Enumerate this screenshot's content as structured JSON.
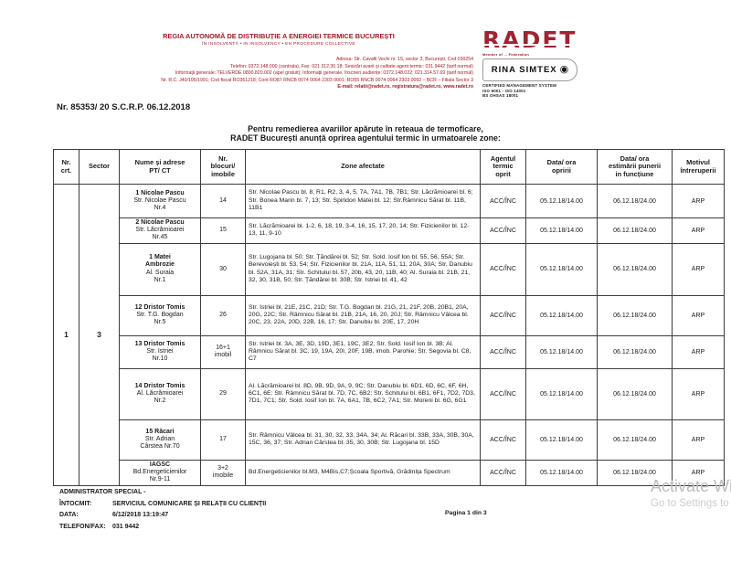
{
  "colors": {
    "brand_red": "#a01c26",
    "logo_red": "#9d2532",
    "watermark_gray": "#bdbdbd"
  },
  "header": {
    "org_name": "REGIA AUTONOMĂ DE DISTRIBUȚIE A ENERGIEI TERMICE BUCUREȘTI",
    "insolvency_line": "ÎN INSOLVENȚĂ • IN INSOLVENCY • EN PROCEDURE COLLECTIVE",
    "address_lines": [
      "Adresa: Str. Cavafii Vechi nr. 15, sector 3, București, Cod 030254",
      "Telefon: 0372.148.000 (centrala), Fax: 021 312.30.18; Sesizări avarii și calitate agent termic: 031.9442 (tarif normal)",
      "Informații generale: TELVERDE 0800.820.002 (apel gratuit); Informații generale, înscrieri audiențe: 0372.148.022; 021.314.57.69 (tarif normal)",
      "Nr. R.C. J40/195/1991; Cod fiscal RO361218; Cont RO87 RNCB 0074 0064 2303 0001; RO55 RNCB 0074 0064 2303 0092 – BCR – Filiala Sector 3",
      "E-mail: relatii@radet.ro, registratura@radet.ro, www.radet.ro"
    ],
    "logo_text": "RADET",
    "member_strip": "Member of ... Federation",
    "cert_name": "RINA SIMTEX",
    "cert_emblem": "◉",
    "cert_lines": "CERTIFIED MANAGEMENT SYSTEM\nISO 9001 - ISO 14001\nBS OHSAS 18001"
  },
  "doc_number": "Nr. 85353/ 20  S.C.R.P.  06.12.2018",
  "announcement": "Pentru remedierea avariilor apărute în reteaua de termoficare,\nRADET București anunță oprirea agentului termic în urmatoarele zone:",
  "table": {
    "headers": [
      "Nr.\ncrt.",
      "Sector",
      "Nume și adrese\nPT/ CT",
      "Nr.\nblocuri/\nimobile",
      "Zone afectate",
      "Agentul\ntermic\noprit",
      "Data/ ora\nopririi",
      "Data/ ora\nestimării punerii\nin funcțiune",
      "Motivul\nîntreruperii"
    ],
    "nr_crt": "1",
    "sector": "3",
    "rows": [
      {
        "title": "1 Nicolae Pascu",
        "addr": "Str. Nicolae Pascu\nNr.4",
        "blocks": "14",
        "zones": "Str. Nicolae Pascu bl. 8, R1, R2, 3, 4, 5, 7A, 7A1, 7B, 7B1; Str. Lăcrămioarei bl. 6; Str. Bonea Marin bl. 7, 13; Str. Spiridon Matei bl. 12; Str.Râmnicu Sărat bl. 11B, 11B1",
        "agent": "ACC/ÎNC",
        "stop": "05.12.18/14.00",
        "restore": "06.12.18/24.00",
        "reason": "ARP"
      },
      {
        "title": "2 Nicolae Pascu",
        "addr": "Str. Lăcrămioarei\nNr.45",
        "blocks": "15",
        "zones": "Str. Lăcrămioarei bl. 1-2, 6, 18, 19, 3-4, 16, 15, 17, 20, 14; Str. Fizicienilor bl. 12-13, 11, 9-10",
        "agent": "ACC/ÎNC",
        "stop": "05.12.18/14.00",
        "restore": "06.12.18/24.00",
        "reason": "ARP"
      },
      {
        "title": "1 Matei\nAmbrozie",
        "addr": "Al. Suraia\nNr.1",
        "blocks": "30",
        "zones": "Str. Lugojana bl. 50; Str. Țăndărei bl. 52; Str. Sold. Iosif Ion bl. 55, 56, 55A; Str. Berevoiești bl. 53, 54; Str. Fizicienilor bl. 21A, 11A, 51, 11, 20A, 30A; Str. Danubiu bl. 52A, 31A, 31; Str. Schitului bl. 57, 20b, 43, 20, 11B, 40; Al. Suraia bl. 21B, 21, 32, 30, 31B, 50; Str. Țăndărei bl. 30B; Str. Istriei bl. 41, 42",
        "agent": "ACC/ÎNC",
        "stop": "05.12.18/14.00",
        "restore": "06.12.18/24.00",
        "reason": "ARP"
      },
      {
        "title": "12 Dristor Tomis",
        "addr": "Str. T.G. Bogdan\nNr.5",
        "blocks": "26",
        "zones": "Str. Istriei bl. 21E, 21C, 21D; Str. T.G. Bogdan bl. 21G, 21, 21F, 20B, 20B1, 20A, 20G, 22C; Str. Râmnicu Sărat bl. 21B, 21A, 16, 20, 20J; Str. Râmnicu Vâlcea bl. 20C, 23, 22A, 20D, 22B, 16, 17; Str. Danubiu bl. 20E, 17, 20H",
        "agent": "ACC/ÎNC",
        "stop": "05.12.18/14.00",
        "restore": "06.12.18/24.00",
        "reason": "ARP"
      },
      {
        "title": "13 Dristor Tomis",
        "addr": "Str. Istriei\nNr.10",
        "blocks": "16+1\nimobil",
        "zones": "Str. Istriei bl. 3A, 3E, 3D, 19D, 3E1, 19C, 3E2; Str. Sold. Iosif Ion bl. 3B; Al. Râmnicu Sărat bl. 3C, 19, 19A, 20I, 20F, 19B, imob. Parohie; Str. Segovia bl. C8, C7",
        "agent": "ACC/ÎNC",
        "stop": "05.12.18/14.00",
        "restore": "06.12.18/24.00",
        "reason": "ARP"
      },
      {
        "title": "14  Dristor Tomis",
        "addr": "Al. Lăcrămioarei\nNr.2",
        "blocks": "29",
        "zones": "Al. Lăcrămioarei bl. 8D, 9B, 9D, 9A, 9, 9C; Str. Danubiu bl. 6D1, 6D, 6C, 6F, 6H, 6C1, 6E; Str. Râmnicu Sărat bl. 7D, 7C, 6B2; Str. Schitului bl. 6B1, 6F1, 7D2, 7D3, 7D1, 7C1; Str. Sold. Iosif Ion bl. 7A, 6A1, 7B, 6C2, 7A1; Str. Moreni bl. 6G, 6G1",
        "agent": "ACC/ÎNC",
        "stop": "05.12.18/14.00",
        "restore": "06.12.18/24.00",
        "reason": "ARP"
      },
      {
        "title": "15 Răcari",
        "addr": "Str. Adrian\nCârstea Nr.70",
        "blocks": "17",
        "zones": "Str. Râmnicu Vâlcea bl. 31, 30, 32, 33, 34A, 34; Al. Răcari bl. 33B, 33A, 30B, 30A, 15C, 36, 37; Str. Adrian Cârstea bl. 35, 30, 30B; Str. Lugojana bl. 15D",
        "agent": "ACC/ÎNC",
        "stop": "05.12.18/14.00",
        "restore": "06.12.18/24.00",
        "reason": "ARP"
      },
      {
        "title": "IAGSC",
        "addr": "Bd.Energeticienilor\nNr.9-11",
        "blocks": "3+2\nimobile",
        "zones": "Bd.Energeticienilor bl.M3, M4Bis,C7;Școala Sportivă, Grădinița Spectrum",
        "agent": "ACC/ÎNC",
        "stop": "05.12.18/14.00",
        "restore": "06.12.18/24.00",
        "reason": "ARP"
      }
    ]
  },
  "footer": {
    "admin_line": "ADMINISTRATOR SPECIAL -",
    "intocmit_label": "ÎNTOCMIT:",
    "intocmit_value": "SERVICIUL COMUNICARE ȘI RELAȚII CU CLIENȚII",
    "data_label": "DATA:",
    "data_value": "6/12/2018   13:19:47",
    "telefon_label": "TELEFON/FAX:",
    "telefon_value": "031 9442",
    "pagina": "Pagina 1 din 3"
  },
  "watermark": {
    "line1": "Activate Windows",
    "line2": "Go to Settings to activate Windows."
  }
}
